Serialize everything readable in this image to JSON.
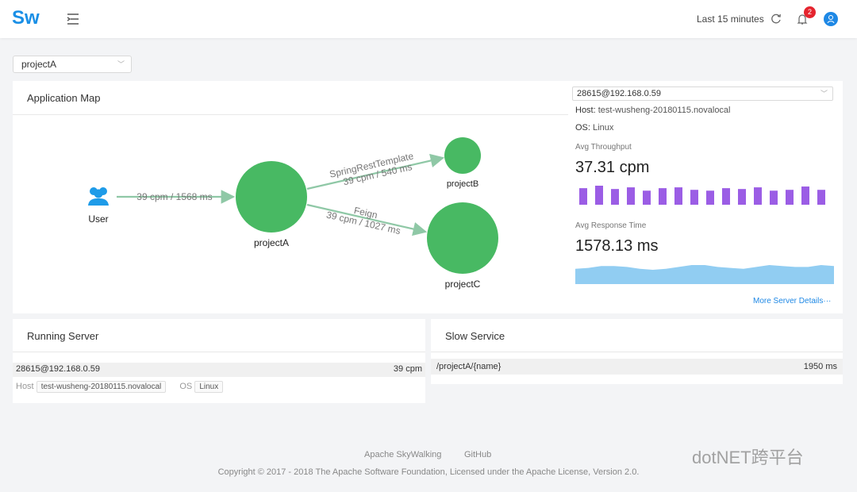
{
  "header": {
    "logo": "Sw",
    "time_range": "Last 15 minutes",
    "notifications": 2
  },
  "project_select": "projectA",
  "app_map": {
    "title": "Application Map",
    "nodes": [
      {
        "label": "User"
      },
      {
        "label": "projectA"
      },
      {
        "label": "projectB"
      },
      {
        "label": "projectC"
      }
    ],
    "edges": [
      {
        "label": "39 cpm / 1568 ms"
      },
      {
        "name": "SpringRestTemplate",
        "label": "39 cpm / 540 ms"
      },
      {
        "name": "Feign",
        "label": "39 cpm / 1027 ms"
      }
    ]
  },
  "server_panel": {
    "select": "28615@192.168.0.59",
    "host_label": "Host:",
    "host": "test-wusheng-20180115.novalocal",
    "os_label": "OS:",
    "os": "Linux",
    "throughput_label": "Avg Throughput",
    "throughput": "37.31 cpm",
    "throughput_bars": [
      20,
      23,
      19,
      21,
      17,
      20,
      21,
      18,
      17,
      20,
      19,
      21,
      17,
      18,
      22,
      18
    ],
    "response_label": "Avg Response Time",
    "response": "1578.13 ms",
    "response_series": [
      16,
      17,
      19,
      19,
      18,
      16,
      15,
      16,
      18,
      20,
      20,
      18,
      17,
      16,
      18,
      20,
      19,
      18,
      18,
      20,
      19
    ],
    "details": "More Server Details···"
  },
  "running_server": {
    "title": "Running Server",
    "server": "28615@192.168.0.59",
    "cpm": "39 cpm",
    "host_label": "Host",
    "host": "test-wusheng-20180115.novalocal",
    "os_label": "OS",
    "os": "Linux"
  },
  "slow_service": {
    "title": "Slow Service",
    "service": "/projectA/{name}",
    "time": "1950 ms"
  },
  "footer": {
    "links": [
      "Apache SkyWalking",
      "GitHub"
    ],
    "copyright": "Copyright © 2017 - 2018 The Apache Software Foundation, Licensed under the Apache License, Version 2.0."
  },
  "watermark": "dotNET跨平台"
}
